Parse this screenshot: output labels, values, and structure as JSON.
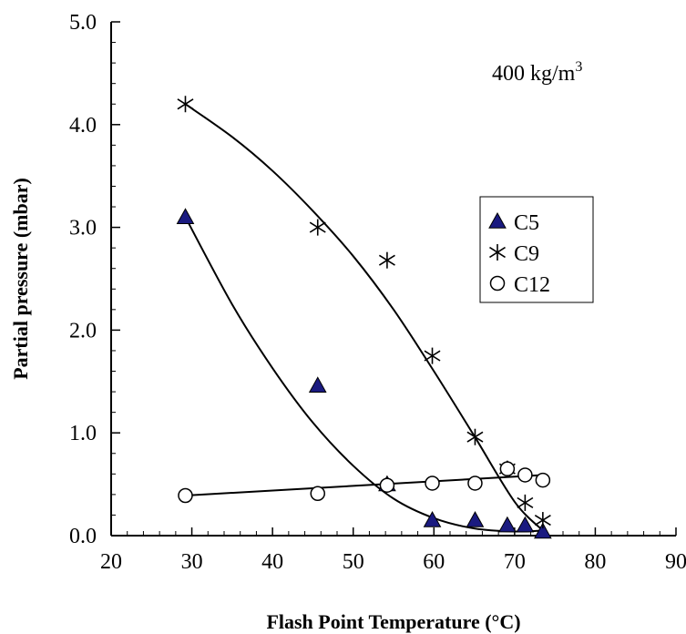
{
  "chart_data": {
    "type": "scatter",
    "title": "",
    "xlabel": "Flash Point Temperature (°C)",
    "ylabel": "Partial pressure (mbar)",
    "xlim": [
      20,
      90
    ],
    "ylim": [
      0,
      5
    ],
    "x_ticks": [
      "20",
      "30",
      "40",
      "50",
      "60",
      "70",
      "80",
      "90"
    ],
    "y_ticks": [
      "0.0",
      "1.0",
      "2.0",
      "3.0",
      "4.0",
      "5.0"
    ],
    "grid": false,
    "legend_position": "right",
    "annotation": {
      "text": "400 kg/m",
      "sup": "3"
    },
    "series": [
      {
        "name": "C5",
        "marker": "filled-triangle",
        "color": "#1a1a80",
        "points": [
          [
            29.2,
            3.1
          ],
          [
            45.6,
            1.46
          ],
          [
            54.2,
            0.5
          ],
          [
            59.8,
            0.15
          ],
          [
            65.1,
            0.15
          ],
          [
            69.1,
            0.1
          ],
          [
            71.3,
            0.1
          ],
          [
            73.5,
            0.04
          ]
        ],
        "trend": [
          [
            29.2,
            3.1
          ],
          [
            35,
            2.25
          ],
          [
            40,
            1.63
          ],
          [
            45,
            1.1
          ],
          [
            50,
            0.68
          ],
          [
            55,
            0.36
          ],
          [
            60,
            0.17
          ],
          [
            65,
            0.07
          ],
          [
            70,
            0.04
          ],
          [
            73.5,
            0.05
          ]
        ]
      },
      {
        "name": "C9",
        "marker": "asterisk",
        "color": "#000000",
        "points": [
          [
            29.2,
            4.2
          ],
          [
            45.6,
            3.0
          ],
          [
            54.2,
            2.68
          ],
          [
            59.8,
            1.75
          ],
          [
            65.1,
            0.96
          ],
          [
            69.1,
            0.65
          ],
          [
            71.3,
            0.32
          ],
          [
            73.5,
            0.15
          ]
        ],
        "trend": [
          [
            29.2,
            4.2
          ],
          [
            35,
            3.88
          ],
          [
            40,
            3.55
          ],
          [
            45,
            3.16
          ],
          [
            50,
            2.72
          ],
          [
            55,
            2.2
          ],
          [
            60,
            1.6
          ],
          [
            65,
            0.97
          ],
          [
            70,
            0.33
          ],
          [
            73.5,
            0.05
          ]
        ]
      },
      {
        "name": "C12",
        "marker": "open-circle",
        "color": "#000000",
        "points": [
          [
            29.2,
            0.39
          ],
          [
            45.6,
            0.41
          ],
          [
            54.2,
            0.49
          ],
          [
            59.8,
            0.51
          ],
          [
            65.1,
            0.51
          ],
          [
            69.1,
            0.65
          ],
          [
            71.3,
            0.59
          ],
          [
            73.5,
            0.54
          ]
        ],
        "trend": [
          [
            29.2,
            0.39
          ],
          [
            73.5,
            0.59
          ]
        ]
      }
    ]
  }
}
